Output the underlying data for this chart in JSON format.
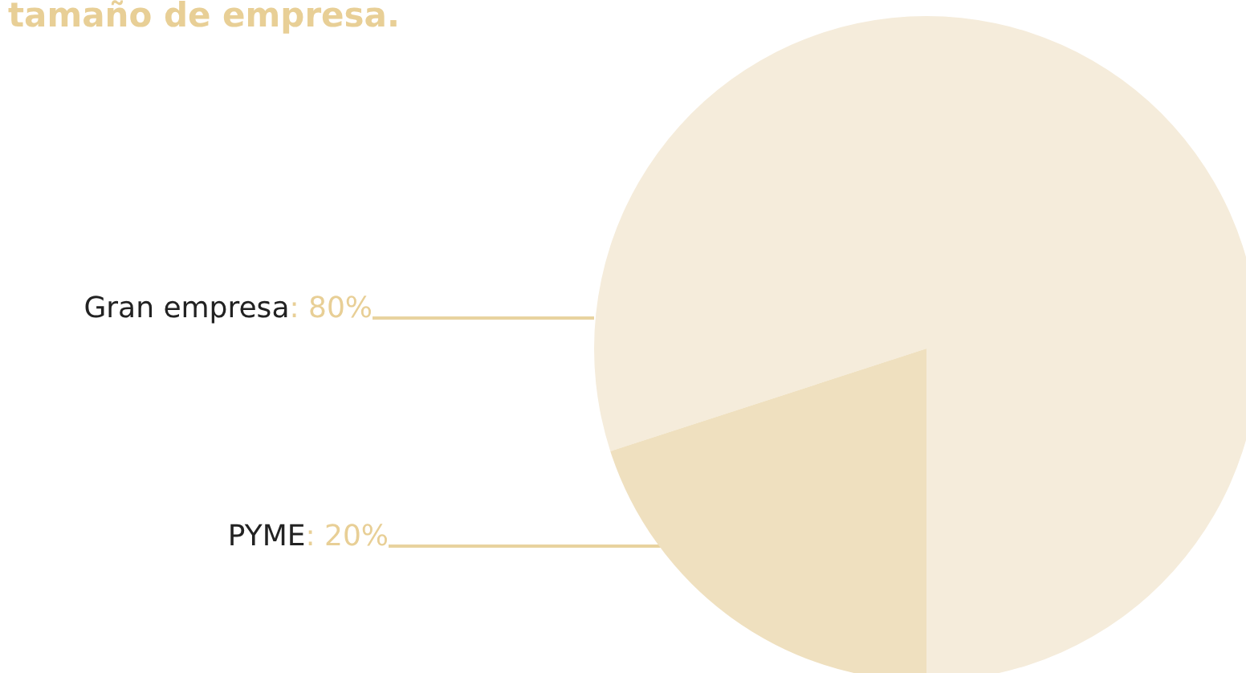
{
  "chart_data": {
    "type": "pie",
    "title": "tamaño de empresa.",
    "categories": [
      "Gran empresa",
      "PYME"
    ],
    "value_labels": [
      ": 80%",
      ": 20%"
    ],
    "values": [
      80,
      20
    ],
    "colors": [
      "#f5ecdb",
      "#efe0bf"
    ],
    "data_labels": true,
    "legend": false
  }
}
